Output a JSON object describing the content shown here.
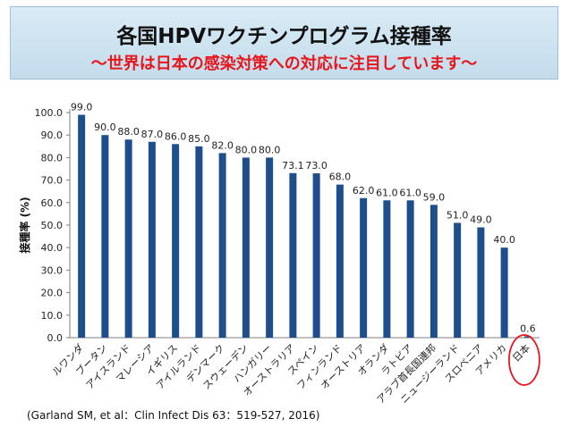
{
  "title": {
    "main": "各国HPVワクチンプログラム接種率",
    "subtitle": "～世界は日本の感染対策への対応に注目しています～"
  },
  "citation": "(Garland SM, et al：Clin Infect Dis 63：519-527, 2016)",
  "chart_data": {
    "type": "bar",
    "ylabel": "接種率 (%)",
    "ylim": [
      0,
      100
    ],
    "yticks": [
      "0.0",
      "10.0",
      "20.0",
      "30.0",
      "40.0",
      "50.0",
      "60.0",
      "70.0",
      "80.0",
      "90.0",
      "100.0"
    ],
    "categories": [
      "ルワンダ",
      "ブータン",
      "アイスランド",
      "マレーシア",
      "イギリス",
      "アイルランド",
      "デンマーク",
      "スウェーデン",
      "ハンガリー",
      "オーストラリア",
      "スペイン",
      "フィンランド",
      "オーストリア",
      "オランダ",
      "ラトビア",
      "アラブ首長国連邦",
      "ニュージーランド",
      "スロベニア",
      "アメリカ",
      "日本"
    ],
    "values": [
      99.0,
      90.0,
      88.0,
      87.0,
      86.0,
      85.0,
      82.0,
      80.0,
      80.0,
      73.1,
      73.0,
      68.0,
      62.0,
      61.0,
      61.0,
      59.0,
      51.0,
      49.0,
      40.0,
      0.6
    ],
    "value_labels": [
      "99.0",
      "90.0",
      "88.0",
      "87.0",
      "86.0",
      "85.0",
      "82.0",
      "80.0",
      "80.0",
      "73.1",
      "73.0",
      "68.0",
      "62.0",
      "61.0",
      "61.0",
      "59.0",
      "51.0",
      "49.0",
      "40.0",
      "0.6"
    ],
    "bar_color": "#1f4e8c",
    "highlight": {
      "category": "日本",
      "color": "#e8151b",
      "shape": "circle"
    },
    "grid": false,
    "legend": "none"
  }
}
